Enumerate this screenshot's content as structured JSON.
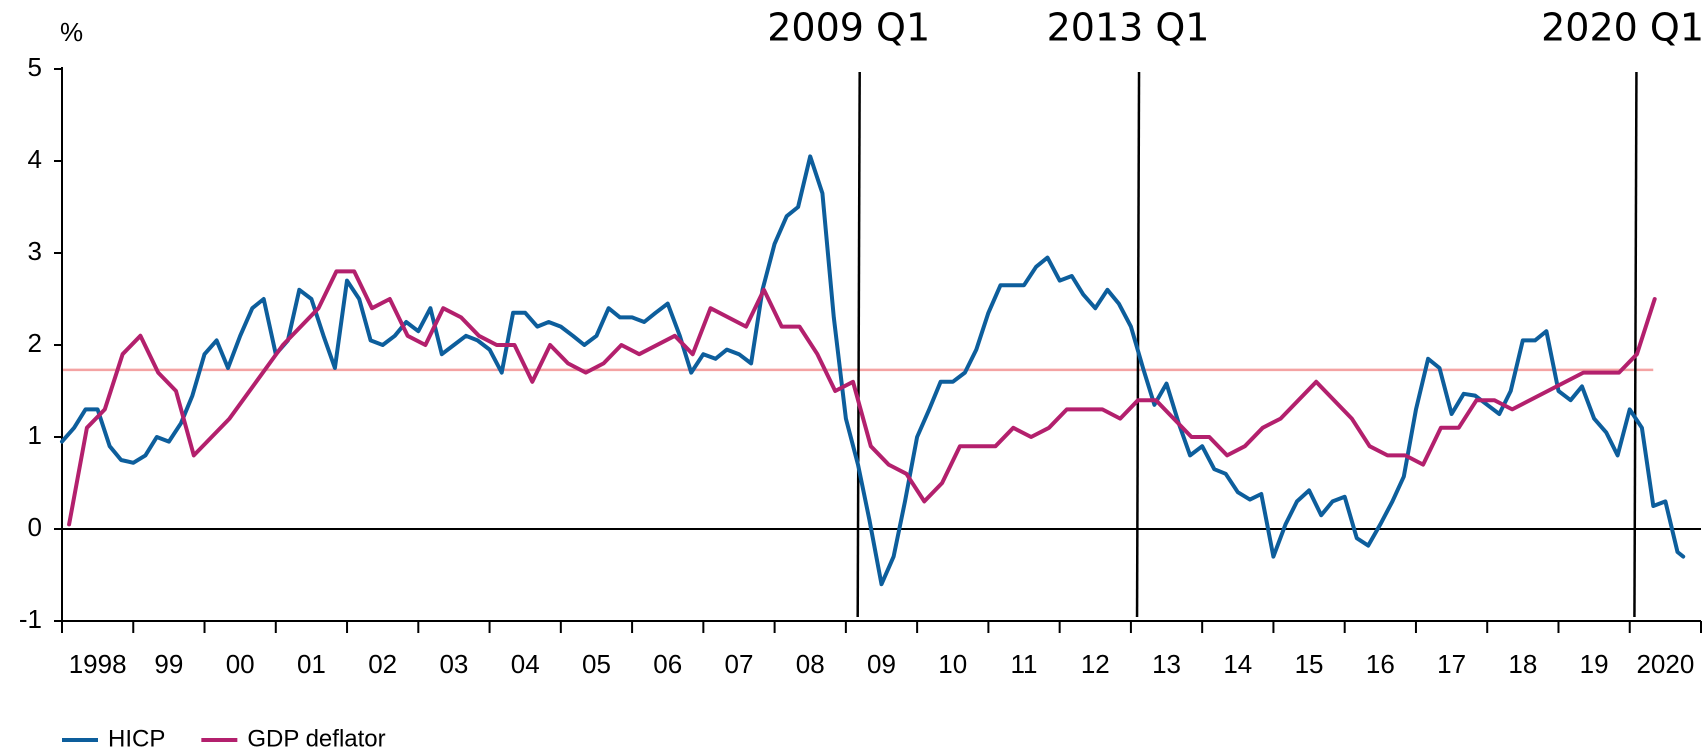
{
  "chart_data": {
    "type": "line",
    "y_unit_label": "%",
    "xlim": [
      1998,
      2021
    ],
    "ylim": [
      -1,
      5
    ],
    "yticks": [
      -1,
      0,
      1,
      2,
      3,
      4,
      5
    ],
    "xtick_marks": [
      1998,
      1999,
      2000,
      2001,
      2002,
      2003,
      2004,
      2005,
      2006,
      2007,
      2008,
      2009,
      2010,
      2011,
      2012,
      2013,
      2014,
      2015,
      2016,
      2017,
      2018,
      2019,
      2020,
      2021
    ],
    "xticks": [
      {
        "value": 1998.5,
        "label": "1998"
      },
      {
        "value": 1999.5,
        "label": "99"
      },
      {
        "value": 2000.5,
        "label": "00"
      },
      {
        "value": 2001.5,
        "label": "01"
      },
      {
        "value": 2002.5,
        "label": "02"
      },
      {
        "value": 2003.5,
        "label": "03"
      },
      {
        "value": 2004.5,
        "label": "04"
      },
      {
        "value": 2005.5,
        "label": "05"
      },
      {
        "value": 2006.5,
        "label": "06"
      },
      {
        "value": 2007.5,
        "label": "07"
      },
      {
        "value": 2008.5,
        "label": "08"
      },
      {
        "value": 2009.5,
        "label": "09"
      },
      {
        "value": 2010.5,
        "label": "10"
      },
      {
        "value": 2011.5,
        "label": "11"
      },
      {
        "value": 2012.5,
        "label": "12"
      },
      {
        "value": 2013.5,
        "label": "13"
      },
      {
        "value": 2014.5,
        "label": "14"
      },
      {
        "value": 2015.5,
        "label": "15"
      },
      {
        "value": 2016.5,
        "label": "16"
      },
      {
        "value": 2017.5,
        "label": "17"
      },
      {
        "value": 2018.5,
        "label": "18"
      },
      {
        "value": 2019.5,
        "label": "19"
      },
      {
        "value": 2020.5,
        "label": "2020"
      }
    ],
    "grid": false,
    "legend": "bottom-left",
    "annotations": [
      {
        "x": 2009.18,
        "label": "2009 Q1"
      },
      {
        "x": 2013.1,
        "label": "2013 Q1"
      },
      {
        "x": 2020.08,
        "label": "2020 Q1"
      }
    ],
    "reference_line": {
      "value": 1.73,
      "x_range": [
        1998,
        2020.33
      ],
      "color": "#f4a3a3"
    },
    "series": [
      {
        "name": "HICP",
        "color": "#0d5e9c",
        "x": [
          1998,
          1998.17,
          1998.33,
          1998.5,
          1998.67,
          1998.83,
          1999,
          1999.17,
          1999.33,
          1999.5,
          1999.67,
          1999.83,
          2000,
          2000.17,
          2000.33,
          2000.5,
          2000.67,
          2000.83,
          2001,
          2001.17,
          2001.33,
          2001.5,
          2001.67,
          2001.83,
          2002,
          2002.17,
          2002.33,
          2002.5,
          2002.67,
          2002.83,
          2003,
          2003.17,
          2003.33,
          2003.5,
          2003.67,
          2003.83,
          2004,
          2004.17,
          2004.33,
          2004.5,
          2004.67,
          2004.83,
          2005,
          2005.17,
          2005.33,
          2005.5,
          2005.67,
          2005.83,
          2006,
          2006.17,
          2006.33,
          2006.5,
          2006.67,
          2006.83,
          2007,
          2007.17,
          2007.33,
          2007.5,
          2007.67,
          2007.83,
          2008,
          2008.17,
          2008.33,
          2008.5,
          2008.67,
          2008.83,
          2009,
          2009.17,
          2009.33,
          2009.5,
          2009.67,
          2009.83,
          2010,
          2010.17,
          2010.33,
          2010.5,
          2010.67,
          2010.83,
          2011,
          2011.17,
          2011.33,
          2011.5,
          2011.67,
          2011.83,
          2012,
          2012.17,
          2012.33,
          2012.5,
          2012.67,
          2012.83,
          2013,
          2013.17,
          2013.33,
          2013.5,
          2013.67,
          2013.83,
          2014,
          2014.17,
          2014.33,
          2014.5,
          2014.67,
          2014.83,
          2015,
          2015.17,
          2015.33,
          2015.5,
          2015.67,
          2015.83,
          2016,
          2016.17,
          2016.33,
          2016.5,
          2016.67,
          2016.83,
          2017,
          2017.17,
          2017.33,
          2017.5,
          2017.67,
          2017.83,
          2018,
          2018.17,
          2018.33,
          2018.5,
          2018.67,
          2018.83,
          2019,
          2019.17,
          2019.33,
          2019.5,
          2019.67,
          2019.83,
          2020,
          2020.17,
          2020.33,
          2020.5,
          2020.67,
          2020.75
        ],
        "values": [
          0.95,
          1.1,
          1.3,
          1.3,
          0.9,
          0.75,
          0.72,
          0.8,
          1.0,
          0.95,
          1.15,
          1.45,
          1.9,
          2.05,
          1.75,
          2.1,
          2.4,
          2.5,
          1.9,
          2.05,
          2.6,
          2.5,
          2.1,
          1.75,
          2.7,
          2.5,
          2.05,
          2.0,
          2.1,
          2.25,
          2.15,
          2.4,
          1.9,
          2.0,
          2.1,
          2.05,
          1.95,
          1.7,
          2.35,
          2.35,
          2.2,
          2.25,
          2.2,
          2.1,
          2.0,
          2.1,
          2.4,
          2.3,
          2.3,
          2.25,
          2.35,
          2.45,
          2.1,
          1.7,
          1.9,
          1.85,
          1.95,
          1.9,
          1.8,
          2.6,
          3.1,
          3.4,
          3.5,
          4.05,
          3.65,
          2.3,
          1.2,
          0.7,
          0.1,
          -0.6,
          -0.3,
          0.3,
          1.0,
          1.3,
          1.6,
          1.6,
          1.7,
          1.95,
          2.35,
          2.65,
          2.65,
          2.65,
          2.85,
          2.95,
          2.7,
          2.75,
          2.55,
          2.4,
          2.6,
          2.45,
          2.2,
          1.75,
          1.35,
          1.58,
          1.15,
          0.8,
          0.9,
          0.65,
          0.6,
          0.4,
          0.32,
          0.38,
          -0.3,
          0.05,
          0.3,
          0.42,
          0.15,
          0.3,
          0.35,
          -0.1,
          -0.18,
          0.05,
          0.3,
          0.57,
          1.3,
          1.85,
          1.75,
          1.25,
          1.47,
          1.45,
          1.35,
          1.25,
          1.5,
          2.05,
          2.05,
          2.15,
          1.5,
          1.4,
          1.55,
          1.2,
          1.05,
          0.8,
          1.3,
          1.1,
          0.25,
          0.3,
          -0.25,
          -0.3
        ]
      },
      {
        "name": "GDP deflator",
        "color": "#b3206d",
        "x": [
          1998.1,
          1998.35,
          1998.6,
          1998.85,
          1999.1,
          1999.35,
          1999.6,
          1999.85,
          2000.35,
          2001.1,
          2001.6,
          2001.85,
          2002.1,
          2002.35,
          2002.6,
          2002.85,
          2003.1,
          2003.35,
          2003.6,
          2003.85,
          2004.1,
          2004.35,
          2004.6,
          2004.85,
          2005.1,
          2005.35,
          2005.6,
          2005.85,
          2006.1,
          2006.6,
          2006.85,
          2007.1,
          2007.6,
          2007.85,
          2008.1,
          2008.35,
          2008.6,
          2008.85,
          2009.1,
          2009.35,
          2009.6,
          2009.85,
          2010.1,
          2010.35,
          2010.6,
          2011.1,
          2011.35,
          2011.6,
          2011.85,
          2012.1,
          2012.6,
          2012.85,
          2013.1,
          2013.35,
          2013.6,
          2013.85,
          2014.1,
          2014.35,
          2014.6,
          2014.85,
          2015.1,
          2015.6,
          2016.1,
          2016.35,
          2016.6,
          2016.85,
          2017.1,
          2017.35,
          2017.6,
          2017.85,
          2018.1,
          2018.35,
          2019.35,
          2019.85,
          2020.1,
          2020.35
        ],
        "values": [
          0.05,
          1.1,
          1.3,
          1.9,
          2.1,
          1.7,
          1.5,
          0.8,
          1.2,
          2.0,
          2.4,
          2.8,
          2.8,
          2.4,
          2.5,
          2.1,
          2.0,
          2.4,
          2.3,
          2.1,
          2.0,
          2.0,
          1.6,
          2.0,
          1.8,
          1.7,
          1.8,
          2.0,
          1.9,
          2.1,
          1.9,
          2.4,
          2.2,
          2.6,
          2.2,
          2.2,
          1.9,
          1.5,
          1.6,
          0.9,
          0.7,
          0.6,
          0.3,
          0.5,
          0.9,
          0.9,
          1.1,
          1.0,
          1.1,
          1.3,
          1.3,
          1.2,
          1.4,
          1.4,
          1.2,
          1.0,
          1.0,
          0.8,
          0.9,
          1.1,
          1.2,
          1.6,
          1.2,
          0.9,
          0.8,
          0.8,
          0.7,
          1.1,
          1.1,
          1.4,
          1.4,
          1.3,
          1.7,
          1.7,
          1.9,
          2.5
        ]
      }
    ]
  }
}
